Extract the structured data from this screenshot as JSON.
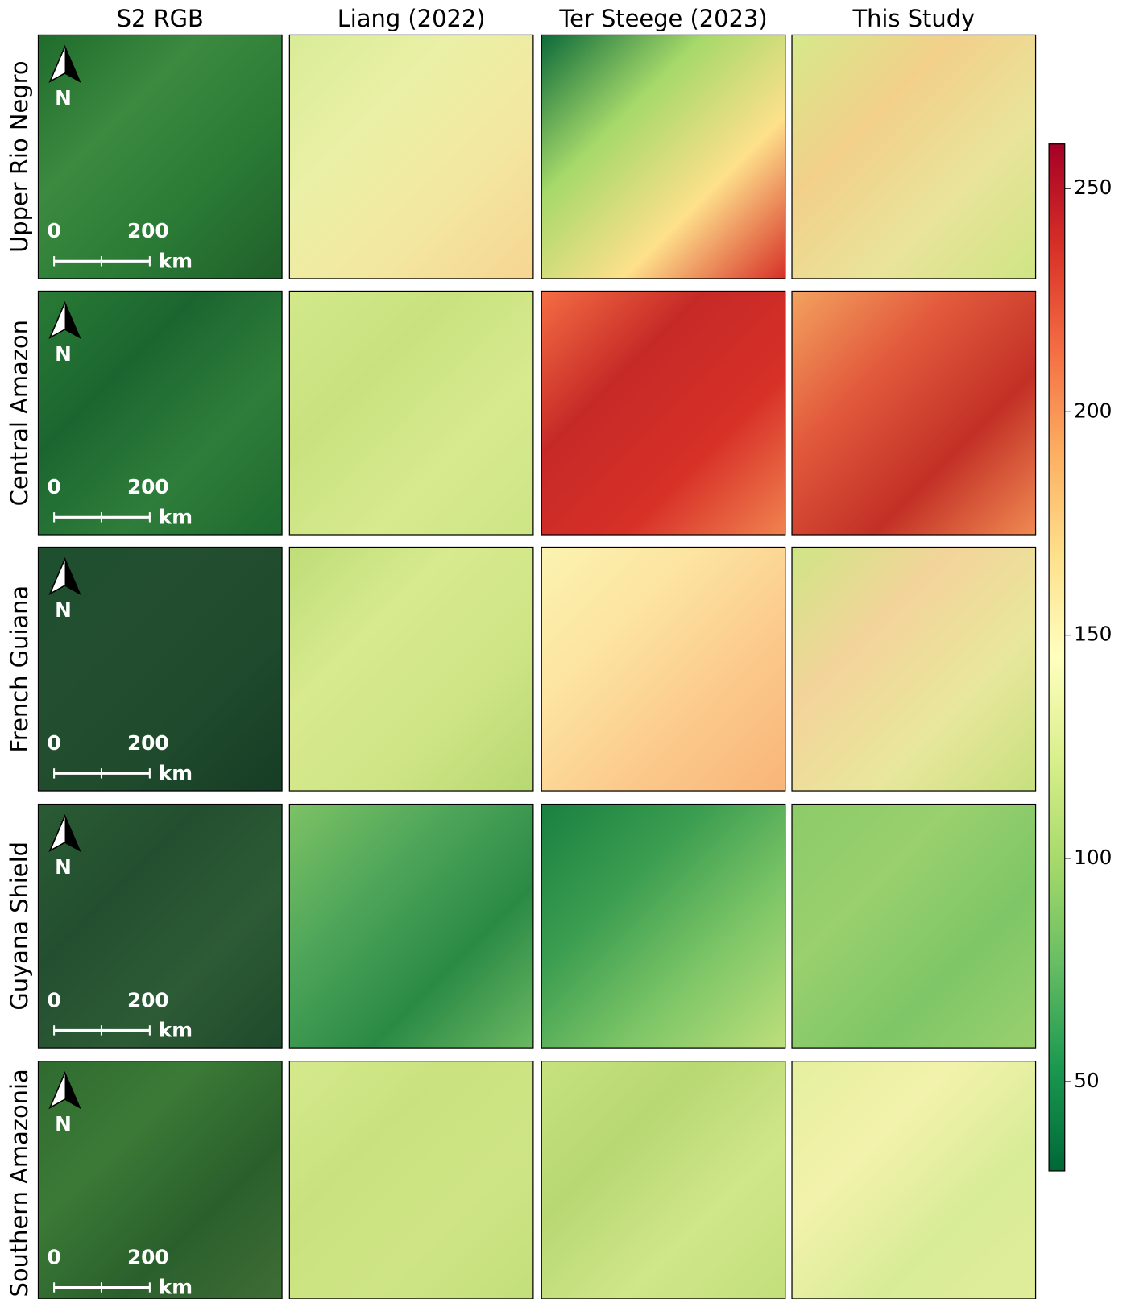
{
  "columns": [
    "S2 RGB",
    "Liang (2022)",
    "Ter Steege (2023)",
    "This Study"
  ],
  "rows": [
    "Upper Rio Negro",
    "Central Amazon",
    "French Guiana",
    "Guyana Shield",
    "Southern Amazonia"
  ],
  "scale_bar": {
    "start": "0",
    "end": "200",
    "unit": "km"
  },
  "north_label": "N",
  "colorbar": {
    "lim": [
      30,
      260
    ],
    "ticks": [
      50,
      100,
      150,
      200,
      250
    ],
    "colormap": [
      "#006837",
      "#1a9850",
      "#66bd63",
      "#a6d96a",
      "#d9ef8b",
      "#ffffbf",
      "#fee08b",
      "#fdae61",
      "#f46d43",
      "#d73027",
      "#a50026"
    ]
  }
}
